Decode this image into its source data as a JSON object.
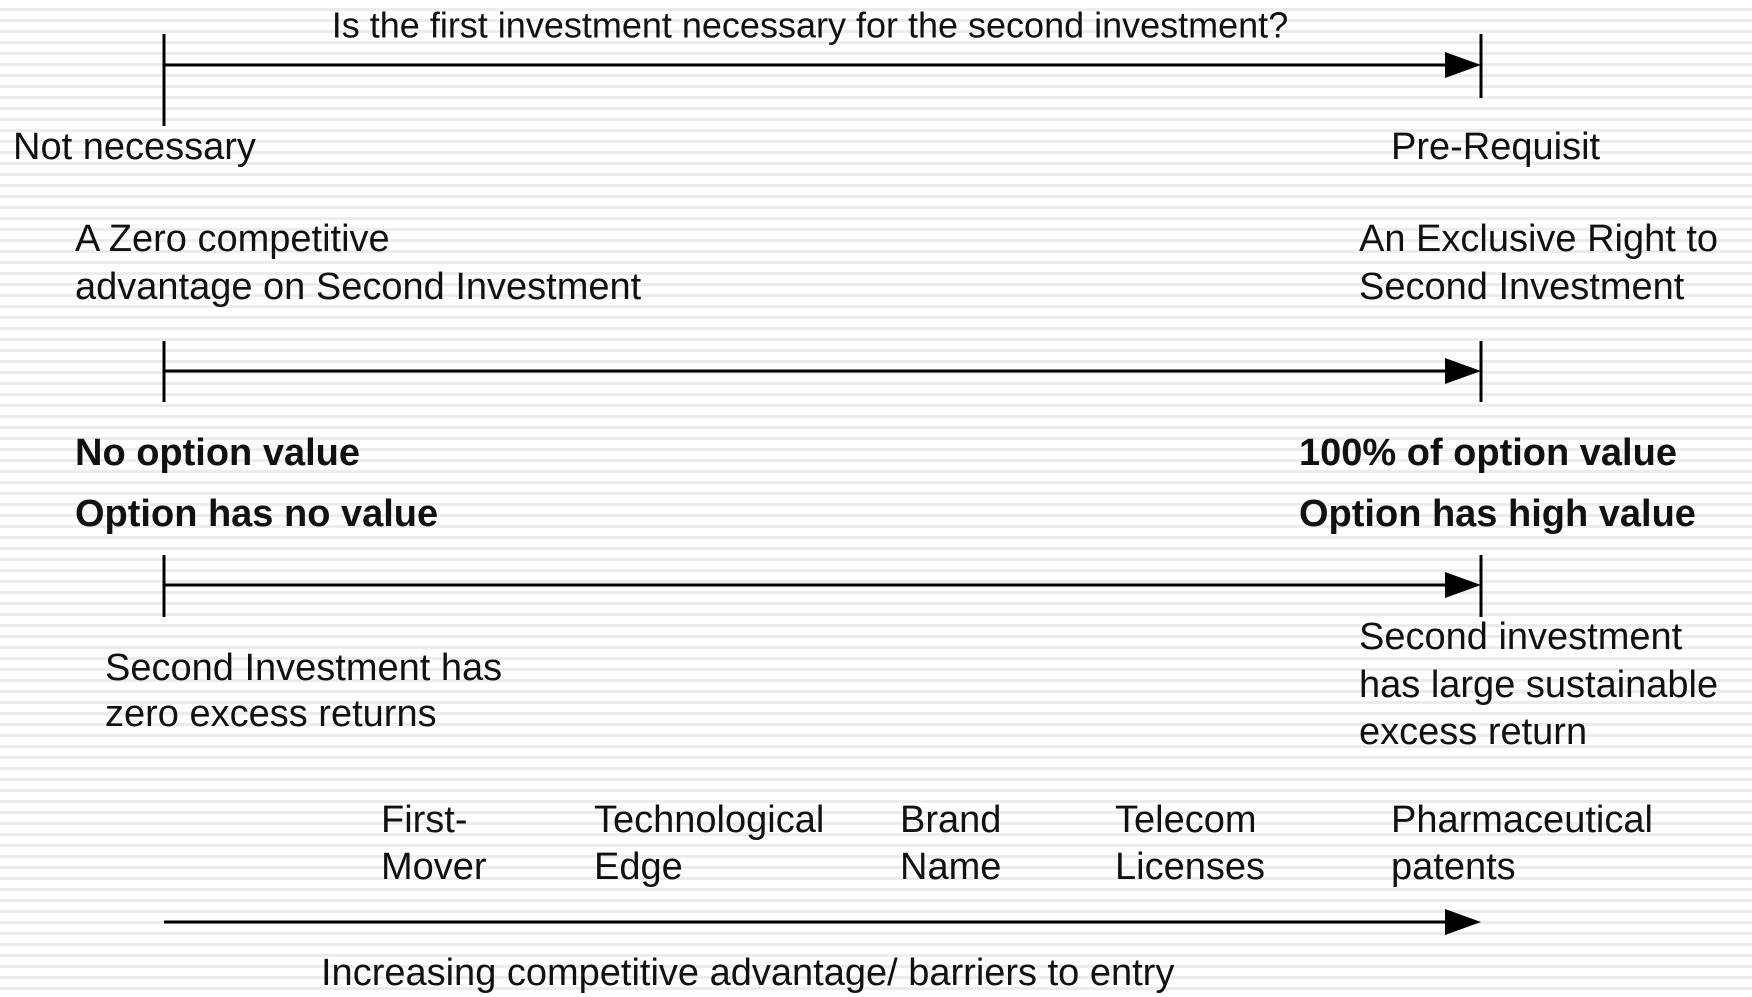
{
  "scales": [
    {
      "question": "Is the first investment necessary for the second investment?",
      "left": "Not necessary",
      "right": "Pre-Requisit"
    },
    {
      "left": [
        "A Zero competitive",
        "advantage on Second Investment"
      ],
      "right": [
        "An Exclusive Right to",
        "Second Investment"
      ],
      "left_bold": [
        "No option value",
        "Option has no value"
      ],
      "right_bold": [
        "100% of option value",
        "Option has high value"
      ]
    },
    {
      "left": [
        "Second Investment has",
        "zero excess returns"
      ],
      "right": [
        "Second investment",
        "has large sustainable",
        "excess return"
      ]
    }
  ],
  "examples": [
    [
      "First-",
      "Mover"
    ],
    [
      "Technological",
      "Edge"
    ],
    [
      "Brand",
      "Name"
    ],
    [
      "Telecom",
      "Licenses"
    ],
    [
      "Pharmaceutical",
      "patents"
    ]
  ],
  "axis_label": "Increasing competitive advantage/ barriers to entry"
}
